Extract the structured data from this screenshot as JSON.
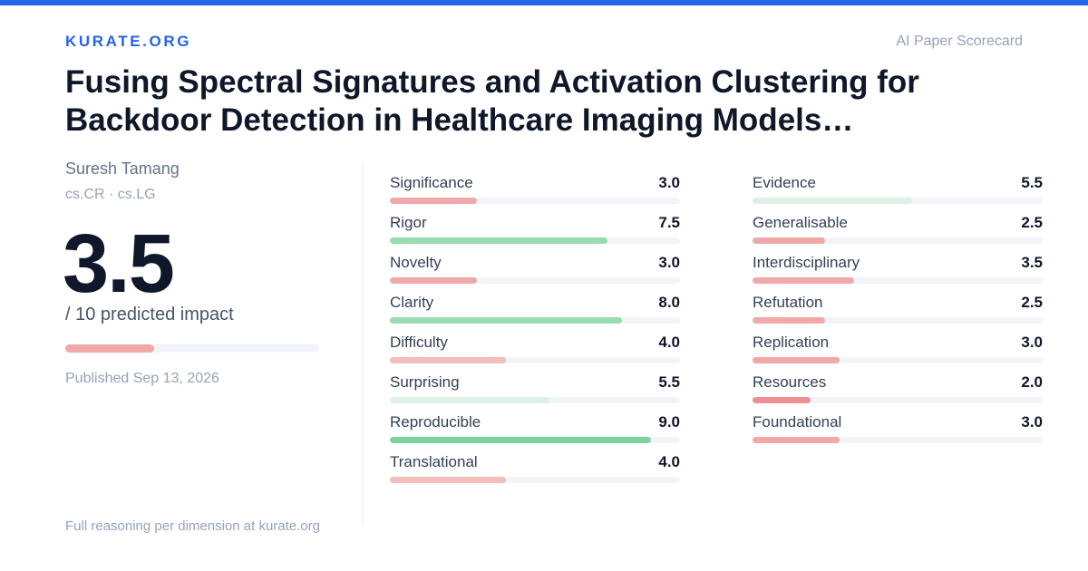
{
  "header": {
    "brand": "KURATE.ORG",
    "tagline": "AI Paper Scorecard",
    "accent_color": "#2563eb"
  },
  "paper": {
    "title": "Fusing Spectral Signatures and Activation Clustering for Backdoor Detection in Healthcare Imaging Models…",
    "author": "Suresh Tamang",
    "categories": "cs.CR · cs.LG",
    "score": "3.5",
    "score_suffix": "/ 10 predicted impact",
    "impact_value": 3.5,
    "impact_max": 10,
    "published": "Published Sep 13, 2026"
  },
  "dimensions_left": [
    {
      "label": "Significance",
      "score": "3.0",
      "value": 3.0
    },
    {
      "label": "Rigor",
      "score": "7.5",
      "value": 7.5
    },
    {
      "label": "Novelty",
      "score": "3.0",
      "value": 3.0
    },
    {
      "label": "Clarity",
      "score": "8.0",
      "value": 8.0
    },
    {
      "label": "Difficulty",
      "score": "4.0",
      "value": 4.0
    },
    {
      "label": "Surprising",
      "score": "5.5",
      "value": 5.5
    },
    {
      "label": "Reproducible",
      "score": "9.0",
      "value": 9.0
    },
    {
      "label": "Translational",
      "score": "4.0",
      "value": 4.0
    }
  ],
  "dimensions_right": [
    {
      "label": "Evidence",
      "score": "5.5",
      "value": 5.5
    },
    {
      "label": "Generalisable",
      "score": "2.5",
      "value": 2.5
    },
    {
      "label": "Interdisciplinary",
      "score": "3.5",
      "value": 3.5
    },
    {
      "label": "Refutation",
      "score": "2.5",
      "value": 2.5
    },
    {
      "label": "Replication",
      "score": "3.0",
      "value": 3.0
    },
    {
      "label": "Resources",
      "score": "2.0",
      "value": 2.0
    },
    {
      "label": "Foundational",
      "score": "3.0",
      "value": 3.0
    }
  ],
  "footer": {
    "note": "Full reasoning per dimension at kurate.org"
  },
  "colors": {
    "very_low": "#ee8f93",
    "low": "#f0a8a8",
    "mid_low": "#f4bcbc",
    "mid": "#dcf1e3",
    "high": "#95ddb0",
    "very_high": "#7dd39e"
  }
}
